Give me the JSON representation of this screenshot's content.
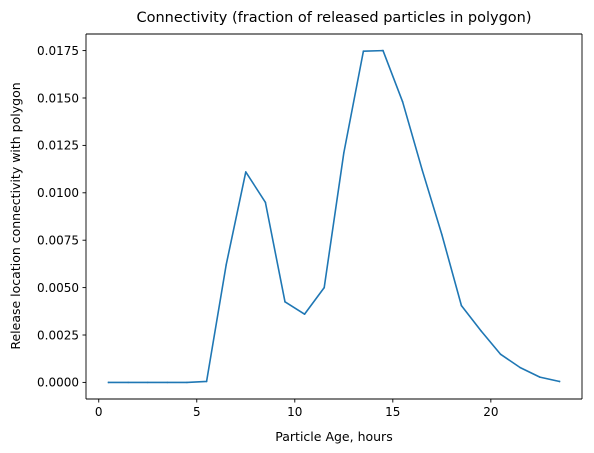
{
  "chart_data": {
    "type": "line",
    "title": "Connectivity (fraction of released particles in polygon)",
    "xlabel": "Particle Age, hours",
    "ylabel": "Release location connectivity with polygon",
    "xlim": [
      -0.65,
      24.65
    ],
    "ylim": [
      -0.000875,
      0.018375
    ],
    "grid": false,
    "xticks": [
      {
        "value": 0,
        "label": "0"
      },
      {
        "value": 5,
        "label": "5"
      },
      {
        "value": 10,
        "label": "10"
      },
      {
        "value": 15,
        "label": "15"
      },
      {
        "value": 20,
        "label": "20"
      }
    ],
    "yticks": [
      {
        "value": 0.0,
        "label": "0.0000"
      },
      {
        "value": 0.0025,
        "label": "0.0025"
      },
      {
        "value": 0.005,
        "label": "0.0050"
      },
      {
        "value": 0.0075,
        "label": "0.0075"
      },
      {
        "value": 0.01,
        "label": "0.0100"
      },
      {
        "value": 0.0125,
        "label": "0.0125"
      },
      {
        "value": 0.015,
        "label": "0.0150"
      },
      {
        "value": 0.0175,
        "label": "0.0175"
      }
    ],
    "series": [
      {
        "color": "#1f77b4",
        "x": [
          0.5,
          1.5,
          2.5,
          3.5,
          4.5,
          5.5,
          6.5,
          7.5,
          8.5,
          9.5,
          10.5,
          11.5,
          12.5,
          13.5,
          14.5,
          15.5,
          16.5,
          17.5,
          18.5,
          19.5,
          20.5,
          21.5,
          22.5,
          23.5
        ],
        "y": [
          0.0,
          0.0,
          0.0,
          0.0,
          0.0,
          5e-05,
          0.0062,
          0.0111,
          0.0095,
          0.00425,
          0.0036,
          0.005,
          0.0121,
          0.01747,
          0.0175,
          0.0148,
          0.0112,
          0.0078,
          0.00405,
          0.00272,
          0.00148,
          0.00078,
          0.00028,
          5e-05
        ]
      }
    ]
  }
}
